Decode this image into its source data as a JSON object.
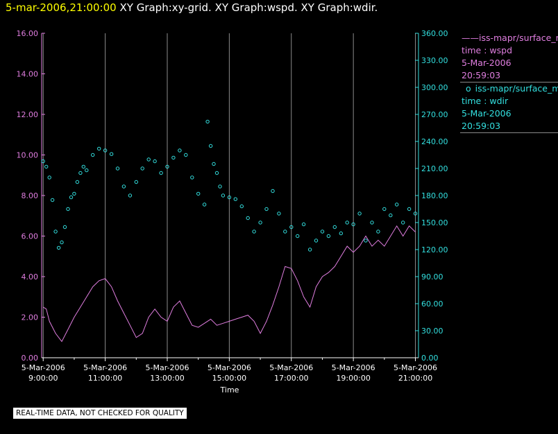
{
  "header": {
    "time": "5-mar-2006,21:00:00",
    "graphs": "XY Graph:xy-grid.  XY Graph:wspd.  XY Graph:wdir."
  },
  "chart_data": {
    "type": "line",
    "xlabel": "Time",
    "x_ticks": [
      {
        "date": "5-Mar-2006",
        "time": "9:00:00",
        "hour": 9
      },
      {
        "date": "5-Mar-2006",
        "time": "11:00:00",
        "hour": 11
      },
      {
        "date": "5-Mar-2006",
        "time": "13:00:00",
        "hour": 13
      },
      {
        "date": "5-Mar-2006",
        "time": "15:00:00",
        "hour": 15
      },
      {
        "date": "5-Mar-2006",
        "time": "17:00:00",
        "hour": 17
      },
      {
        "date": "5-Mar-2006",
        "time": "19:00:00",
        "hour": 19
      },
      {
        "date": "5-Mar-2006",
        "time": "21:00:00",
        "hour": 21
      }
    ],
    "xlim": [
      8.95,
      21.1
    ],
    "x_minor_hours": [
      10,
      12,
      14,
      16,
      18,
      20
    ],
    "y_left": {
      "lim": [
        0,
        16
      ],
      "ticks": [
        "0.00",
        "2.00",
        "4.00",
        "6.00",
        "8.00",
        "10.00",
        "12.00",
        "14.00",
        "16.00"
      ],
      "color": "#e07ee0"
    },
    "y_right": {
      "lim": [
        0,
        360
      ],
      "ticks": [
        "0.00",
        "30.00",
        "60.00",
        "90.00",
        "120.00",
        "150.00",
        "180.00",
        "210.00",
        "240.00",
        "270.00",
        "300.00",
        "330.00",
        "360.00"
      ],
      "color": "#33e0e0"
    },
    "series": [
      {
        "name": "wspd",
        "axis": "left",
        "style": "line",
        "color": "#e07ee0",
        "x": [
          9.0,
          9.1,
          9.2,
          9.4,
          9.6,
          9.8,
          10.0,
          10.2,
          10.4,
          10.6,
          10.8,
          11.0,
          11.2,
          11.4,
          11.6,
          11.8,
          12.0,
          12.2,
          12.4,
          12.6,
          12.8,
          13.0,
          13.2,
          13.4,
          13.6,
          13.8,
          14.0,
          14.2,
          14.4,
          14.6,
          14.8,
          15.0,
          15.2,
          15.4,
          15.6,
          15.8,
          16.0,
          16.2,
          16.4,
          16.6,
          16.8,
          17.0,
          17.2,
          17.4,
          17.6,
          17.8,
          18.0,
          18.2,
          18.4,
          18.6,
          18.8,
          19.0,
          19.2,
          19.4,
          19.6,
          19.8,
          20.0,
          20.2,
          20.4,
          20.6,
          20.8,
          21.0
        ],
        "values": [
          2.5,
          2.4,
          1.8,
          1.2,
          0.8,
          1.4,
          2.0,
          2.5,
          3.0,
          3.5,
          3.8,
          3.9,
          3.5,
          2.8,
          2.2,
          1.6,
          1.0,
          1.2,
          2.0,
          2.4,
          2.0,
          1.8,
          2.5,
          2.8,
          2.2,
          1.6,
          1.5,
          1.7,
          1.9,
          1.6,
          1.7,
          1.8,
          1.9,
          2.0,
          2.1,
          1.8,
          1.2,
          1.8,
          2.6,
          3.5,
          4.5,
          4.4,
          3.8,
          3.0,
          2.5,
          3.5,
          4.0,
          4.2,
          4.5,
          5.0,
          5.5,
          5.2,
          5.5,
          6.0,
          5.5,
          5.8,
          5.5,
          6.0,
          6.5,
          6.0,
          6.5,
          6.2
        ]
      },
      {
        "name": "wdir",
        "axis": "right",
        "style": "markers",
        "color": "#33e0e0",
        "x": [
          9.0,
          9.1,
          9.2,
          9.3,
          9.4,
          9.5,
          9.6,
          9.7,
          9.8,
          9.9,
          10.0,
          10.1,
          10.2,
          10.3,
          10.4,
          10.6,
          10.8,
          11.0,
          11.2,
          11.4,
          11.6,
          11.8,
          12.0,
          12.2,
          12.4,
          12.6,
          12.8,
          13.0,
          13.2,
          13.4,
          13.6,
          13.8,
          14.0,
          14.2,
          14.3,
          14.4,
          14.5,
          14.6,
          14.7,
          14.8,
          15.0,
          15.2,
          15.4,
          15.6,
          15.8,
          16.0,
          16.2,
          16.4,
          16.6,
          16.8,
          17.0,
          17.2,
          17.4,
          17.6,
          17.8,
          18.0,
          18.2,
          18.4,
          18.6,
          18.8,
          19.0,
          19.2,
          19.4,
          19.6,
          19.8,
          20.0,
          20.2,
          20.4,
          20.6,
          20.8,
          21.0
        ],
        "values": [
          218,
          212,
          200,
          175,
          140,
          122,
          128,
          145,
          165,
          178,
          182,
          195,
          205,
          212,
          208,
          225,
          232,
          230,
          226,
          210,
          190,
          180,
          195,
          210,
          220,
          218,
          205,
          212,
          222,
          230,
          225,
          200,
          182,
          170,
          262,
          235,
          215,
          205,
          190,
          180,
          178,
          176,
          168,
          155,
          140,
          150,
          165,
          185,
          160,
          140,
          145,
          135,
          148,
          120,
          130,
          140,
          135,
          145,
          138,
          150,
          148,
          160,
          130,
          150,
          140,
          165,
          158,
          170,
          150,
          165,
          160
        ]
      }
    ]
  },
  "legend": {
    "items": [
      {
        "marker": "——",
        "name": "iss-mapr/surface_met",
        "var": "time : wspd",
        "date": "5-Mar-2006",
        "time": "20:59:03",
        "color": "#e07ee0"
      },
      {
        "marker": "o",
        "name": "iss-mapr/surface_met",
        "var": "time : wdir",
        "date": "5-Mar-2006",
        "time": "20:59:03",
        "color": "#33e0e0"
      }
    ]
  },
  "disclaimer": "REAL-TIME DATA, NOT CHECKED FOR QUALITY"
}
